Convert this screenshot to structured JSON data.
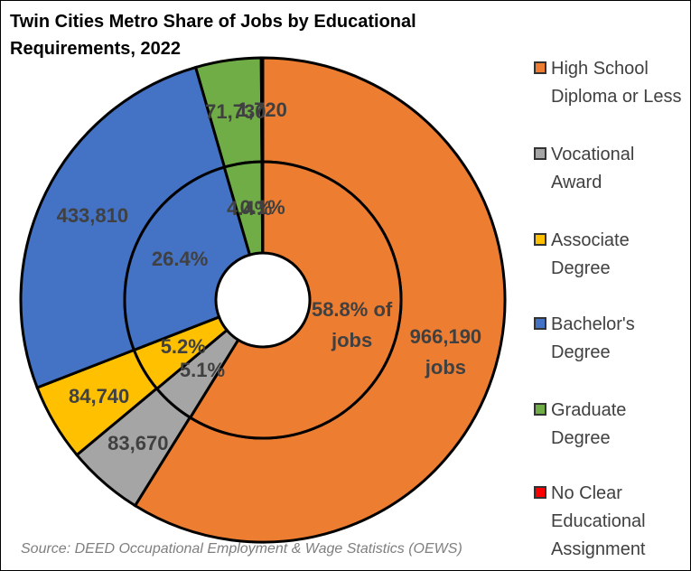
{
  "chart_data": {
    "type": "doughnut",
    "title": "Twin Cities Metro Share of Jobs by Educational Requirements, 2022",
    "source": "Source: DEED Occupational Employment & Wage Statistics (OEWS)",
    "categories": [
      "High School Diploma or Less",
      "Vocational Award",
      "Associate Degree",
      "Bachelor's Degree",
      "Graduate Degree",
      "No Clear Educational Assignment"
    ],
    "colors": [
      "#ED7D31",
      "#A5A5A5",
      "#FFC000",
      "#4472C4",
      "#70AD47",
      "#FF0000"
    ],
    "series": [
      {
        "values": [
          966190,
          83670,
          84740,
          433810,
          71730,
          1720
        ],
        "value_labels": [
          "966,190 jobs",
          "83,670",
          "84,740",
          "433,810",
          "71,730",
          "1,720"
        ]
      },
      {
        "values": [
          58.8,
          5.1,
          5.2,
          26.4,
          4.4,
          0.1
        ],
        "value_labels": [
          "58.8% of jobs",
          "5.1%",
          "5.2%",
          "26.4%",
          "4.4%",
          "0.1%"
        ]
      }
    ]
  }
}
